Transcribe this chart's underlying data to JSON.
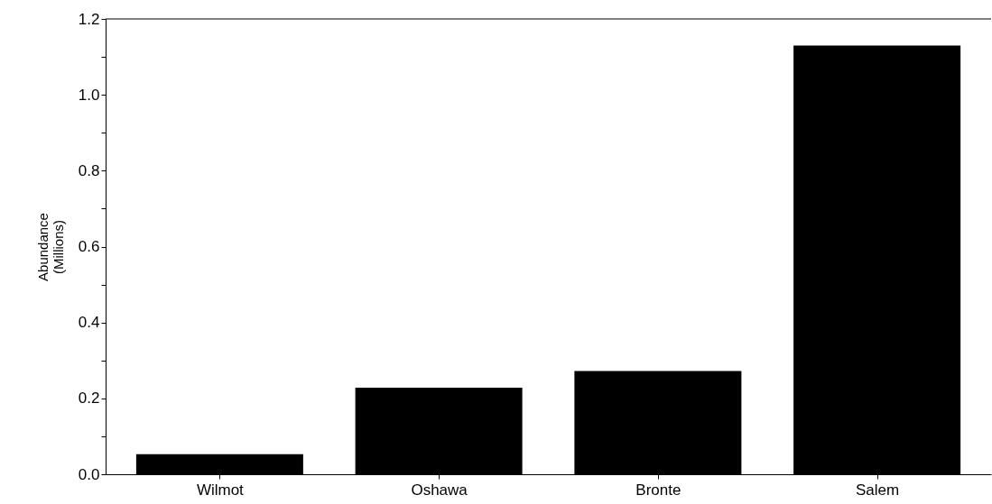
{
  "chart_data": {
    "type": "bar",
    "ylabel": "Abundance\n(Millions)",
    "categories": [
      "Wilmot",
      "Oshawa",
      "Bronte",
      "Salem"
    ],
    "values": [
      0.053,
      0.228,
      0.272,
      1.13
    ],
    "color": "#000000",
    "ylim": [
      0,
      1.2
    ],
    "yticks": [
      {
        "value": 0,
        "label": "0.0"
      },
      {
        "value": 0.1,
        "label": null
      },
      {
        "value": 0.2,
        "label": "0.2"
      },
      {
        "value": 0.3,
        "label": null
      },
      {
        "value": 0.4,
        "label": "0.4"
      },
      {
        "value": 0.5,
        "label": null
      },
      {
        "value": 0.6,
        "label": "0.6"
      },
      {
        "value": 0.7,
        "label": null
      },
      {
        "value": 0.8,
        "label": "0.8"
      },
      {
        "value": 0.9,
        "label": null
      },
      {
        "value": 1.0,
        "label": "1.0"
      },
      {
        "value": 1.1,
        "label": null
      },
      {
        "value": 1.2,
        "label": "1.2"
      }
    ],
    "grid": false
  }
}
